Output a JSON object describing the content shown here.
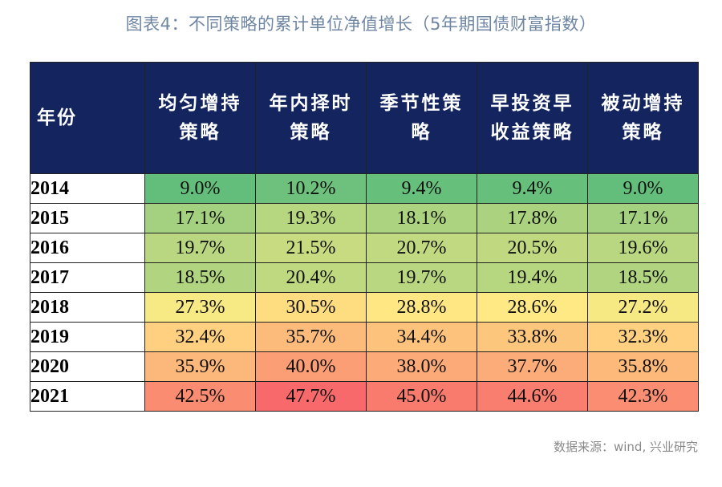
{
  "title": "图表4：不同策略的累计单位净值增长（5年期国债财富指数）",
  "source": "数据来源：wind, 兴业研究",
  "chart_data": {
    "type": "table",
    "corner_label": "年份",
    "columns": [
      {
        "line1": "均匀增持",
        "line2": "策略"
      },
      {
        "line1": "年内择时",
        "line2": "策略"
      },
      {
        "line1": "季节性策",
        "line2": "略"
      },
      {
        "line1": "早投资早",
        "line2": "收益策略"
      },
      {
        "line1": "被动增持",
        "line2": "策略"
      }
    ],
    "rows": [
      {
        "year": "2014",
        "values": [
          9.0,
          10.2,
          9.4,
          9.4,
          9.0
        ]
      },
      {
        "year": "2015",
        "values": [
          17.1,
          19.3,
          18.1,
          17.8,
          17.1
        ]
      },
      {
        "year": "2016",
        "values": [
          19.7,
          21.5,
          20.7,
          20.5,
          19.6
        ]
      },
      {
        "year": "2017",
        "values": [
          18.5,
          20.4,
          19.7,
          19.4,
          18.5
        ]
      },
      {
        "year": "2018",
        "values": [
          27.3,
          30.5,
          28.8,
          28.6,
          27.2
        ]
      },
      {
        "year": "2019",
        "values": [
          32.4,
          35.7,
          34.4,
          33.8,
          32.3
        ]
      },
      {
        "year": "2020",
        "values": [
          35.9,
          40.0,
          38.0,
          37.7,
          35.8
        ]
      },
      {
        "year": "2021",
        "values": [
          42.5,
          47.7,
          45.0,
          44.6,
          42.3
        ]
      }
    ],
    "value_unit": "%",
    "color_scale": {
      "low": "#63be7b",
      "mid": "#ffeb84",
      "high": "#f8696b"
    },
    "header_bg": "#13245f"
  }
}
